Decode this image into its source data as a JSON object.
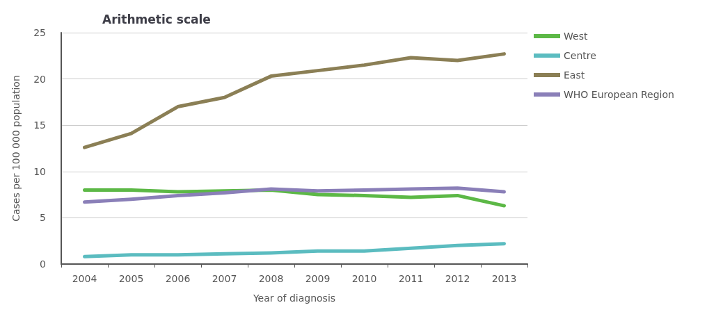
{
  "chart_data": {
    "type": "line",
    "title": "Arithmetic scale",
    "xlabel": "Year of diagnosis",
    "ylabel": "Cases per 100 000 population",
    "categories": [
      "2004",
      "2005",
      "2006",
      "2007",
      "2008",
      "2009",
      "2010",
      "2011",
      "2012",
      "2013"
    ],
    "series": [
      {
        "name": "West",
        "color": "#5cb846",
        "values": [
          8.0,
          8.0,
          7.8,
          7.9,
          8.0,
          7.5,
          7.4,
          7.2,
          7.4,
          6.3
        ]
      },
      {
        "name": "Centre",
        "color": "#5bbcc0",
        "values": [
          0.8,
          1.0,
          1.0,
          1.1,
          1.2,
          1.4,
          1.4,
          1.7,
          2.0,
          2.2
        ]
      },
      {
        "name": "East",
        "color": "#8b7f55",
        "values": [
          12.6,
          14.1,
          17.0,
          18.0,
          20.3,
          20.9,
          21.5,
          22.3,
          22.0,
          22.7
        ]
      },
      {
        "name": "WHO European Region",
        "color": "#8a7fb8",
        "values": [
          6.7,
          7.0,
          7.4,
          7.7,
          8.1,
          7.9,
          8.0,
          8.1,
          8.2,
          7.8
        ]
      }
    ],
    "ylim": [
      0,
      25
    ],
    "yticks": [
      0,
      5,
      10,
      15,
      20,
      25
    ],
    "grid": "y",
    "legend": "right",
    "marker": "none",
    "line_style": "solid"
  }
}
